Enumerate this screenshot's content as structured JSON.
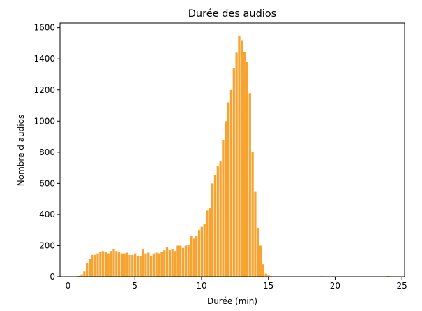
{
  "chart_data": {
    "type": "bar",
    "title": "Durée des audios",
    "xlabel": "Durée (min)",
    "ylabel": "Nombre d audios",
    "xlim": [
      -0.6,
      25.2
    ],
    "ylim": [
      0,
      1630
    ],
    "xticks": [
      0,
      5,
      10,
      15,
      20,
      25
    ],
    "yticks": [
      0,
      200,
      400,
      600,
      800,
      1000,
      1200,
      1400,
      1600
    ],
    "grid": false,
    "legend": "none",
    "bar_color": "#F5A331",
    "bar_width": 0.17,
    "x": [
      0.62,
      0.82,
      1.02,
      1.22,
      1.42,
      1.62,
      1.82,
      2.02,
      2.22,
      2.42,
      2.62,
      2.82,
      3.02,
      3.22,
      3.42,
      3.62,
      3.82,
      4.02,
      4.22,
      4.42,
      4.62,
      4.82,
      5.02,
      5.22,
      5.42,
      5.62,
      5.82,
      6.02,
      6.22,
      6.42,
      6.62,
      6.82,
      7.02,
      7.22,
      7.42,
      7.62,
      7.82,
      8.02,
      8.22,
      8.42,
      8.62,
      8.82,
      9.02,
      9.22,
      9.42,
      9.62,
      9.82,
      10.02,
      10.22,
      10.42,
      10.62,
      10.82,
      11.02,
      11.22,
      11.42,
      11.62,
      11.82,
      12.02,
      12.22,
      12.42,
      12.62,
      12.82,
      13.02,
      13.22,
      13.42,
      13.62,
      13.82,
      14.02,
      14.22,
      14.42,
      14.62,
      14.82,
      15.02,
      15.22,
      15.42,
      15.62,
      15.82,
      16.02,
      16.22,
      16.42,
      16.62,
      16.82,
      19.0,
      19.4,
      24.0
    ],
    "values": [
      2,
      5,
      15,
      35,
      85,
      115,
      140,
      140,
      150,
      160,
      165,
      160,
      150,
      165,
      180,
      165,
      160,
      150,
      150,
      155,
      140,
      140,
      150,
      135,
      135,
      175,
      150,
      155,
      135,
      150,
      155,
      150,
      160,
      170,
      190,
      170,
      175,
      165,
      200,
      200,
      185,
      200,
      205,
      265,
      245,
      265,
      300,
      320,
      340,
      425,
      440,
      600,
      655,
      710,
      740,
      880,
      1000,
      1120,
      1200,
      1340,
      1440,
      1550,
      1520,
      1445,
      1380,
      1180,
      800,
      545,
      315,
      200,
      80,
      20,
      8,
      3,
      2,
      2,
      2,
      1,
      1,
      1,
      1,
      1,
      3,
      2,
      5
    ]
  }
}
